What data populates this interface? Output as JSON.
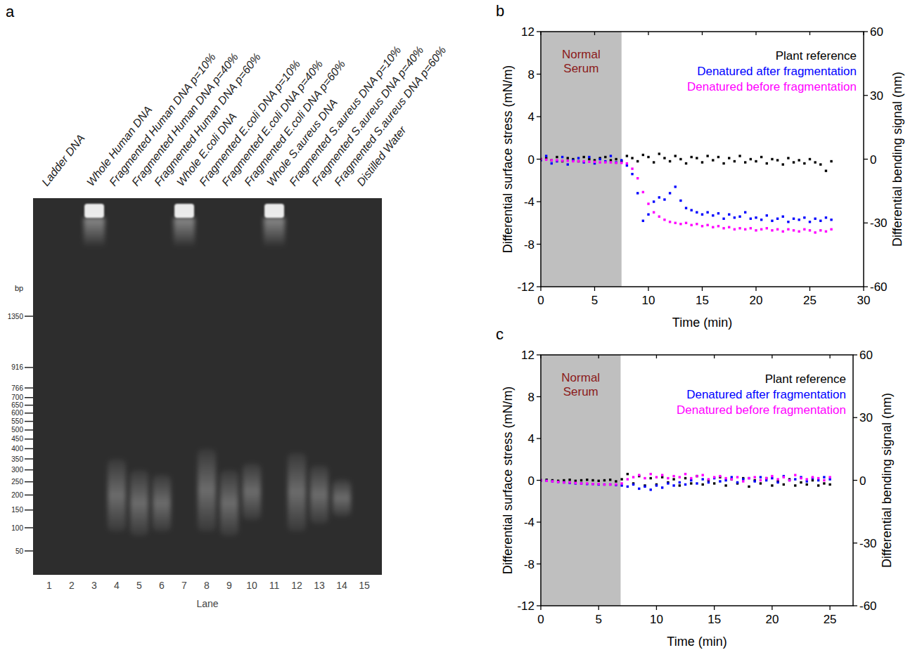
{
  "gel": {
    "panel": "a",
    "xlabel": "Lane",
    "bp_label": "bp",
    "ladder": [
      1350,
      916,
      766,
      700,
      650,
      600,
      550,
      500,
      450,
      400,
      350,
      300,
      250,
      200,
      150,
      100,
      50
    ],
    "lanes": [
      {
        "number": 1,
        "label": "Ladder DNA",
        "ladder": true
      },
      {
        "number": 2,
        "label": null
      },
      {
        "number": 3,
        "label": "Whole Human DNA",
        "whole_band": true
      },
      {
        "number": 4,
        "label": "Fragmented Human DNA p=10%",
        "smear_bp": [
          90,
          350
        ]
      },
      {
        "number": 5,
        "label": "Fragmented Human DNA p=40%",
        "smear_bp": [
          80,
          300
        ]
      },
      {
        "number": 6,
        "label": "Fragmented Human DNA p=60%",
        "smear_bp": [
          90,
          280
        ]
      },
      {
        "number": 7,
        "label": "Whole E.coli DNA",
        "whole_band": true
      },
      {
        "number": 8,
        "label": "Fragmented E.coli DNA p=10%",
        "smear_bp": [
          90,
          400
        ]
      },
      {
        "number": 9,
        "label": "Fragmented E.coli DNA p=40%",
        "smear_bp": [
          80,
          300
        ]
      },
      {
        "number": 10,
        "label": "Fragmented E.coli DNA p=60%",
        "smear_bp": [
          120,
          330
        ]
      },
      {
        "number": 11,
        "label": "Whole S.aureus DNA",
        "whole_band": true
      },
      {
        "number": 12,
        "label": "Fragmented S.aureus  DNA p=10%",
        "smear_bp": [
          90,
          380
        ]
      },
      {
        "number": 13,
        "label": "Fragmented S.aureus DNA p=40%",
        "smear_bp": [
          110,
          320
        ]
      },
      {
        "number": 14,
        "label": "Fragmented S.aureus DNA p=60%",
        "smear_bp": [
          130,
          260
        ]
      },
      {
        "number": 15,
        "label": "Distilled Water"
      }
    ]
  },
  "chart_data": [
    {
      "panel": "b",
      "type": "scatter",
      "marker": "square",
      "legend": "upper right",
      "xlabel": "Time (min)",
      "ylabel": "Differential surface stress (mN/m)",
      "y2label": "Differential bending signal (nm)",
      "xlim": [
        0,
        30
      ],
      "ylim": [
        -12,
        12
      ],
      "y2lim": [
        -60,
        60
      ],
      "xticks": [
        0,
        5,
        10,
        15,
        20,
        25,
        30
      ],
      "yticks": [
        -12,
        -8,
        -4,
        0,
        4,
        8,
        12
      ],
      "y2ticks": [
        -60,
        -30,
        0,
        30,
        60
      ],
      "shade": {
        "x": [
          0,
          7.5
        ],
        "label": "Normal Serum"
      },
      "x": [
        0,
        0.5,
        1,
        1.5,
        2,
        2.5,
        3,
        3.5,
        4,
        4.5,
        5,
        5.5,
        6,
        6.5,
        7,
        7.5,
        8,
        8.5,
        9,
        9.5,
        10,
        10.5,
        11,
        11.5,
        12,
        12.5,
        13,
        13.5,
        14,
        14.5,
        15,
        15.5,
        16,
        16.5,
        17,
        17.5,
        18,
        18.5,
        19,
        19.5,
        20,
        20.5,
        21,
        21.5,
        22,
        22.5,
        23,
        23.5,
        24,
        24.5,
        25,
        25.5,
        26,
        26.5,
        27
      ],
      "series": [
        {
          "name": "Plant reference",
          "color": "#000000",
          "values": [
            0,
            0.1,
            -0.1,
            0.2,
            -0.2,
            0.1,
            0,
            -0.2,
            0.2,
            0,
            -0.1,
            0.1,
            0.2,
            -0.1,
            0,
            -0.2,
            0.3,
            0.1,
            -0.2,
            0.4,
            0.2,
            -0.3,
            0.5,
            0.1,
            -0.2,
            0.3,
            0,
            -0.4,
            0.2,
            0.1,
            -0.3,
            0.3,
            -0.1,
            0.2,
            -0.4,
            0.1,
            -0.2,
            0.3,
            -0.3,
            0,
            -0.2,
            0.2,
            -0.4,
            0,
            -0.1,
            -0.5,
            0.1,
            -0.3,
            -0.1,
            -0.4,
            0,
            -0.3,
            -0.5,
            -1.1,
            -0.2
          ]
        },
        {
          "name": "Denatured after fragmentation",
          "color": "#0000ff",
          "values": [
            -0.1,
            0.3,
            -0.4,
            -0.2,
            0.2,
            -0.5,
            -0.1,
            0.1,
            -0.3,
            0.2,
            -0.4,
            0,
            -0.2,
            0.3,
            -0.3,
            -0.1,
            -0.6,
            -1.4,
            -3.2,
            -5.8,
            -5.2,
            -4.0,
            -3.6,
            -3.8,
            -3.2,
            -2.6,
            -3.9,
            -4.6,
            -4.8,
            -5.0,
            -5.2,
            -5.0,
            -5.3,
            -5.1,
            -5.6,
            -5.2,
            -5.5,
            -5.4,
            -5.0,
            -5.6,
            -5.5,
            -5.7,
            -5.3,
            -5.8,
            -5.6,
            -5.4,
            -5.9,
            -5.6,
            -5.7,
            -5.5,
            -5.9,
            -5.6,
            -5.8,
            -5.5,
            -5.7
          ]
        },
        {
          "name": "Denatured before fragmentation",
          "color": "#ff00ff",
          "values": [
            0,
            -0.05,
            -0.1,
            -0.1,
            -0.15,
            -0.15,
            -0.2,
            -0.2,
            -0.2,
            -0.25,
            -0.25,
            -0.3,
            -0.3,
            -0.3,
            -0.35,
            -0.35,
            -0.4,
            -0.9,
            -1.8,
            -3.1,
            -4.2,
            -5.0,
            -5.4,
            -5.7,
            -5.9,
            -6.0,
            -6.1,
            -6.0,
            -6.2,
            -6.1,
            -6.3,
            -6.2,
            -6.4,
            -6.3,
            -6.5,
            -6.4,
            -6.6,
            -6.5,
            -6.6,
            -6.5,
            -6.7,
            -6.6,
            -6.5,
            -6.7,
            -6.6,
            -6.8,
            -6.6,
            -6.7,
            -6.8,
            -6.6,
            -6.7,
            -6.9,
            -6.7,
            -6.8,
            -6.6
          ]
        }
      ]
    },
    {
      "panel": "c",
      "type": "scatter",
      "marker": "square",
      "legend": "upper right",
      "xlabel": "Time (min)",
      "ylabel": "Differential surface stress (mN/m)",
      "y2label": "Differential bending signal (nm)",
      "xlim": [
        0,
        27
      ],
      "ylim": [
        -12,
        12
      ],
      "y2lim": [
        -60,
        60
      ],
      "xticks": [
        0,
        5,
        10,
        15,
        20,
        25
      ],
      "yticks": [
        -12,
        -8,
        -4,
        0,
        4,
        8,
        12
      ],
      "y2ticks": [
        -60,
        -30,
        0,
        30,
        60
      ],
      "shade": {
        "x": [
          0,
          6.9
        ],
        "label": "Normal Serum"
      },
      "x": [
        0,
        0.5,
        1,
        1.5,
        2,
        2.5,
        3,
        3.5,
        4,
        4.5,
        5,
        5.5,
        6,
        6.5,
        7,
        7.5,
        8,
        8.5,
        9,
        9.5,
        10,
        10.5,
        11,
        11.5,
        12,
        12.5,
        13,
        13.5,
        14,
        14.5,
        15,
        15.5,
        16,
        16.5,
        17,
        17.5,
        18,
        18.5,
        19,
        19.5,
        20,
        20.5,
        21,
        21.5,
        22,
        22.5,
        23,
        23.5,
        24,
        24.5,
        25
      ],
      "series": [
        {
          "name": "Plant reference",
          "color": "#000000",
          "values": [
            0,
            0.05,
            0,
            -0.05,
            0,
            0.05,
            -0.05,
            0,
            0.05,
            0,
            -0.05,
            0,
            0.05,
            -0.1,
            0.1,
            0.6,
            -0.3,
            0.4,
            -0.5,
            0.2,
            -0.4,
            0.3,
            -0.2,
            0.1,
            -0.5,
            0.2,
            -0.3,
            0.4,
            -0.4,
            0,
            -0.3,
            0.3,
            -0.5,
            0.1,
            -0.3,
            0.2,
            -0.6,
            0,
            -0.3,
            0.2,
            -0.5,
            -0.1,
            -0.4,
            0.1,
            -0.5,
            -0.2,
            -0.4,
            0,
            -0.5,
            -0.3,
            -0.4
          ]
        },
        {
          "name": "Denatured after fragmentation",
          "color": "#0000ff",
          "values": [
            0,
            -0.05,
            -0.1,
            -0.15,
            -0.2,
            -0.25,
            -0.3,
            -0.3,
            -0.35,
            -0.35,
            -0.4,
            -0.4,
            -0.4,
            -0.45,
            -0.5,
            -0.6,
            -0.4,
            -0.8,
            -0.6,
            -0.9,
            -0.5,
            -0.7,
            -0.3,
            -0.5,
            -0.2,
            -0.4,
            0,
            -0.3,
            0.1,
            -0.2,
            0.2,
            -0.1,
            0,
            0.3,
            -0.2,
            0.1,
            0.2,
            -0.1,
            0.3,
            0,
            0.2,
            -0.2,
            0.4,
            0,
            0.1,
            0.3,
            -0.1,
            0.2,
            0,
            0.3,
            0.1
          ]
        },
        {
          "name": "Denatured before fragmentation",
          "color": "#ff00ff",
          "values": [
            0,
            -0.05,
            -0.1,
            -0.15,
            -0.2,
            -0.2,
            -0.25,
            -0.3,
            -0.3,
            -0.35,
            -0.35,
            -0.4,
            -0.4,
            -0.4,
            -0.3,
            0.1,
            0.3,
            0.5,
            0.2,
            0.6,
            0.3,
            0.5,
            0.2,
            0.4,
            0.3,
            0.6,
            0.2,
            0.4,
            0.5,
            0.1,
            0.3,
            0.4,
            0.2,
            0.1,
            0.3,
            -0.1,
            0.2,
            0.3,
            0,
            0.2,
            0.4,
            0.1,
            0.3,
            0,
            0.5,
            0.2,
            0.1,
            0.3,
            0.2,
            0,
            0.3
          ]
        }
      ]
    }
  ]
}
